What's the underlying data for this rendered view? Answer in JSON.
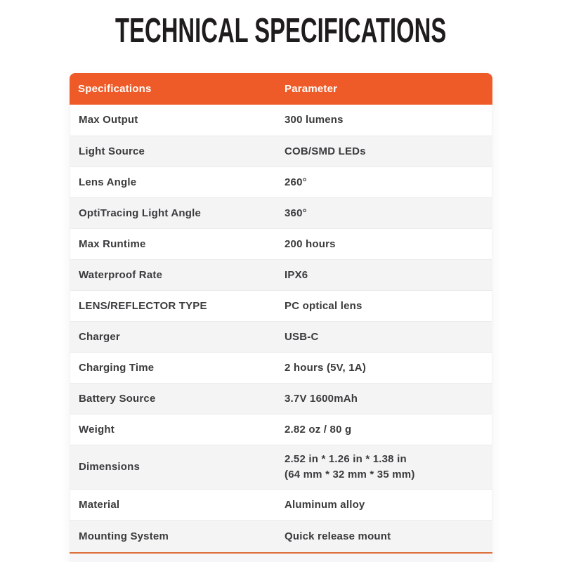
{
  "page": {
    "title": "TECHNICAL SPECIFICATIONS"
  },
  "colors": {
    "accent_orange": "#EF5B28",
    "bottom_border_orange": "#DD6F3A",
    "header_text": "#FFFFFF",
    "body_text": "#3B3A3C",
    "title_text": "#1E1C1C",
    "row_alt_background": "#F4F4F5",
    "row_background": "#FFFFFF",
    "row_divider": "#EBEBEB"
  },
  "table": {
    "headers": [
      "Specifications",
      "Parameter"
    ],
    "rows": [
      {
        "label": "Max Output",
        "value": "300 lumens"
      },
      {
        "label": "Light Source",
        "value": "COB/SMD LEDs"
      },
      {
        "label": "Lens Angle",
        "value": "260°"
      },
      {
        "label": "OptiTracing Light Angle",
        "value": "360°"
      },
      {
        "label": "Max Runtime",
        "value": "200 hours"
      },
      {
        "label": "Waterproof Rate",
        "value": "IPX6"
      },
      {
        "label": "LENS/REFLECTOR TYPE",
        "value": "PC optical lens"
      },
      {
        "label": "Charger",
        "value": "USB-C"
      },
      {
        "label": "Charging Time",
        "value": "2 hours (5V, 1A)"
      },
      {
        "label": "Battery Source",
        "value": "3.7V 1600mAh"
      },
      {
        "label": "Weight",
        "value": "2.82 oz / 80 g"
      },
      {
        "label": "Dimensions",
        "value": "2.52 in * 1.26 in * 1.38 in",
        "value2": "(64 mm * 32 mm * 35 mm)"
      },
      {
        "label": "Material",
        "value": "Aluminum alloy"
      },
      {
        "label": "Mounting System",
        "value": "Quick release mount"
      }
    ]
  }
}
